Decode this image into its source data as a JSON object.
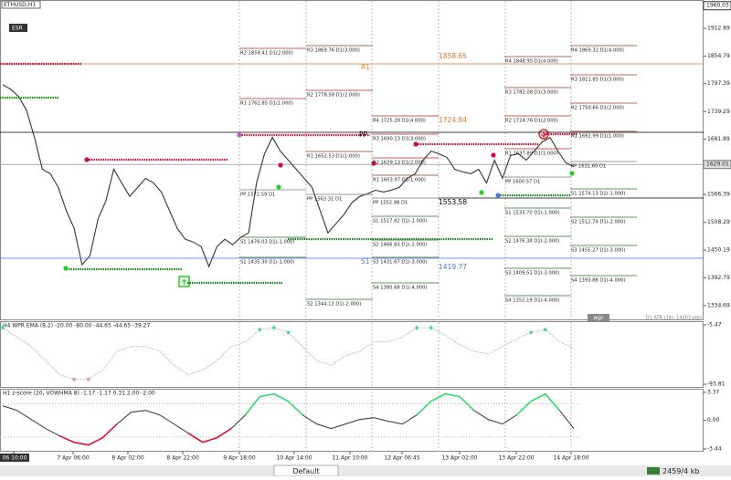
{
  "symbol": "ETHUSD,H1",
  "badge": "ESR",
  "chart_data": [
    {
      "type": "line",
      "color": "#333333",
      "ylim": [
        1306,
        1970
      ],
      "yticks": [
        1912.89,
        1854.79,
        1797.39,
        1739.29,
        1681.89,
        1566.39,
        1508.29,
        1450.19,
        1392.79,
        1334.69
      ],
      "top_price": 1960.03,
      "current_price": 1629.01,
      "values": [
        1795.4,
        1785.9,
        1770.7,
        1742.3,
        1685.4,
        1619.0,
        1609.6,
        1581.2,
        1533.8,
        1495.8,
        1420.0,
        1438.9,
        1514.8,
        1552.7,
        1619.0,
        1590.6,
        1562.2,
        1581.2,
        1600.1,
        1590.6,
        1571.6,
        1533.8,
        1495.8,
        1473.1,
        1467.4,
        1457.9,
        1416.2,
        1457.9,
        1473.1,
        1461.7,
        1476.9,
        1486.4,
        1590.6,
        1651.3,
        1685.4,
        1656.9,
        1638.0,
        1619.0,
        1600.1,
        1581.2,
        1533.8,
        1486.4,
        1505.3,
        1524.3,
        1549.0,
        1562.2,
        1567.9,
        1575.5,
        1571.6,
        1575.5,
        1581.2,
        1600.1,
        1609.6,
        1638.0,
        1656.9,
        1651.3,
        1643.7,
        1619.0,
        1613.4,
        1609.6,
        1619.0,
        1590.6,
        1638.0,
        1600.1,
        1647.5,
        1651.3,
        1638.0,
        1656.9,
        1675.9,
        1685.4,
        1656.9,
        1632.3,
        1624.7
      ]
    },
    {
      "type": "wpr",
      "title": "H4 WPR  EMA (8,2) -20.00 -80.00 -44.65 -44.65 -39.27",
      "ylim": [
        -93.81,
        -5.47
      ],
      "yticks": [
        -5.47,
        -93.81
      ],
      "levels": [
        -20,
        -80
      ],
      "colors": [
        "#3ddc84",
        "#e88aa8",
        "#999999"
      ],
      "values": [
        -9.7,
        -23.7,
        -37.7,
        -58.7,
        -79.8,
        -86.8,
        -86.8,
        -72.8,
        -44.7,
        -37.7,
        -37.7,
        -44.7,
        -65.8,
        -79.8,
        -72.8,
        -58.7,
        -37.7,
        -30.7,
        -12.5,
        -9.7,
        -16.7,
        -37.7,
        -58.7,
        -65.8,
        -51.7,
        -44.7,
        -30.7,
        -30.7,
        -23.7,
        -9.7,
        -9.7,
        -20.9,
        -34.9,
        -44.7,
        -48.9,
        -37.7,
        -26.5,
        -16.7,
        -12.5,
        -30.7,
        -40.5
      ]
    },
    {
      "type": "zscore",
      "title": "H1 z-score (20, VOWHMA 8) -1.17 -1.17 0.31 2.00 -2.00",
      "ylim": [
        -3.44,
        3.37
      ],
      "yticks": [
        3.37,
        {
          "value": 0,
          "label": "0.00"
        },
        -3.44
      ],
      "levels": [
        2,
        -2
      ],
      "colors": [
        "#2ee06a",
        "#e0102a",
        "#444444"
      ],
      "values": [
        1.76,
        1.21,
        0.11,
        -0.99,
        -1.87,
        -2.64,
        -2.97,
        -2.09,
        -0.44,
        0.99,
        1.21,
        0.66,
        -0.44,
        -1.54,
        -2.64,
        -2.09,
        -0.99,
        0.66,
        2.86,
        3.19,
        2.31,
        0.66,
        -0.44,
        -0.99,
        -0.44,
        0.11,
        0.33,
        -0.11,
        -0.44,
        0.66,
        2.31,
        3.19,
        2.86,
        1.21,
        0.11,
        -0.44,
        0.66,
        2.31,
        3.19,
        1.21,
        -0.99
      ]
    }
  ],
  "pivot_groups": [
    [
      "R2 1859.41 D1(2.000)",
      "R1 1762.85 D1(1.000)",
      "PP 1572.59 D1",
      "S1 1476.03 D1(-1.000)",
      "S1 1435.30 D1(-1.000)"
    ],
    [
      "R3 1869.76 D1(3.000)",
      "R2 1778.58 D1(2.000)",
      "R1 1652.53 D1(1.000)",
      "PP 1563.31 D1",
      "S2 1344.12 D1(-2.000)"
    ],
    [
      "R4 1725.28 D1(4.000)",
      "R3 1690.13 D1(3.000)",
      "R2 1639.13 D1(2.000)",
      "R1 1603.97 D1(1.000)",
      "PP 1552.98 D1",
      "S1 1517.82 D1(-1.000)",
      "S2 1466.83 D1(-2.000)",
      "S3 1431.67 D1(-3.000)",
      "S4 1380.68 D1(-4.000)"
    ],
    [
      "R4 1848.95 D1(4.000)",
      "R3 1782.08 D1(3.000)",
      "R2 1724.76 D1(2.000)",
      "R1 1637.89 D1(1.000)",
      "PP 1600.57 D1",
      "S1 1533.70 D1(-1.000)",
      "S2 1476.38 D1(-2.000)",
      "S3 1409.51 D1(-3.000)",
      "S4 1352.19 D1(-4.000)"
    ],
    [
      "R4 1869.32 D1(4.000)",
      "R3 1811.85 D1(3.000)",
      "R2 1750.66 D1(2.000)",
      "R1 1692.99 D1(1.000)",
      "PP 1631.60 D1",
      "S1 1574.13 D1(-1.000)",
      "S2 1512.74 D1(-2.000)",
      "S3 1455.27 D1(-3.000)",
      "S4 1393.88 D1(-4.000)"
    ]
  ],
  "level_labels": [
    {
      "text": "1858.65",
      "color": "#e8762a"
    },
    {
      "text": "1724.84",
      "color": "#e8762a"
    },
    {
      "text": "1553.58",
      "color": "#000000"
    },
    {
      "text": "1419.77",
      "color": "#4a78e0"
    },
    {
      "text": "R1",
      "color": "#e8762a"
    },
    {
      "text": "PP",
      "color": "#000000"
    },
    {
      "text": "S1",
      "color": "#4a78e0"
    }
  ],
  "time_labels": [
    "06 10:00",
    "7 Apr 06:00",
    "8 Apr 02:00",
    "8 Apr 22:00",
    "9 Apr 18:00",
    "10 Apr 14:00",
    "11 Apr 10:00",
    "12 Apr 06:45",
    "13 Apr 02:00",
    "13 Apr 22:00",
    "14 Apr 18:00"
  ],
  "atr_label": "D1 ATR (14): 14203 pips",
  "indicator_tag": "wpr",
  "status_bar": {
    "tab": "Default",
    "memory": "2459/4 kb"
  }
}
